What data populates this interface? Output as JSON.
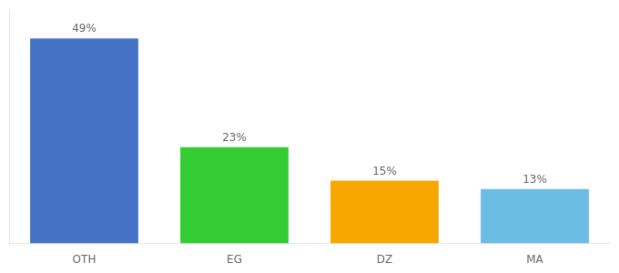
{
  "chart_data": {
    "type": "bar",
    "categories": [
      "OTH",
      "EG",
      "DZ",
      "MA"
    ],
    "values": [
      49,
      23,
      15,
      13
    ],
    "value_labels": [
      "49%",
      "23%",
      "15%",
      "13%"
    ],
    "colors": [
      "#4472c4",
      "#33cc33",
      "#f7a800",
      "#6bbde3"
    ],
    "ylim": [
      0,
      56
    ],
    "grid": false,
    "data_labels": true,
    "tick_labels": "x"
  }
}
